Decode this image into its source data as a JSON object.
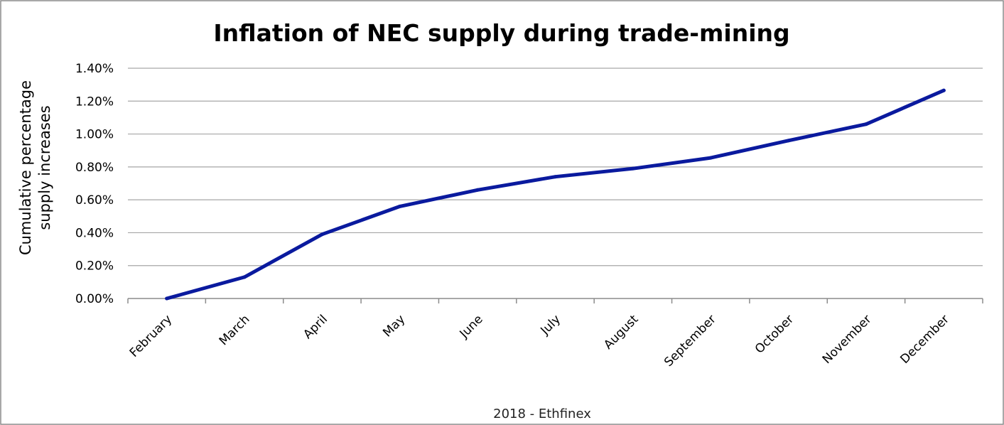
{
  "chart_data": {
    "type": "line",
    "title": "Inflation of NEC supply during trade-mining",
    "ylabel_lines": [
      "Cumulative percentage",
      "supply increases"
    ],
    "xlabel": "2018 - Ethfinex",
    "categories": [
      "February",
      "March",
      "April",
      "May",
      "June",
      "July",
      "August",
      "September",
      "October",
      "November",
      "December"
    ],
    "series": [
      {
        "values": [
          0.0,
          0.13,
          0.39,
          0.56,
          0.66,
          0.74,
          0.79,
          0.855,
          0.96,
          1.06,
          1.265
        ],
        "color": "#0a1a9e"
      }
    ],
    "ylim": [
      0,
      1.4
    ],
    "yticks": [
      "0.00%",
      "0.20%",
      "0.40%",
      "0.60%",
      "0.80%",
      "1.00%",
      "1.20%",
      "1.40%"
    ],
    "grid": true,
    "legend": "none",
    "colors": {
      "grid": "#a6a6a6",
      "border": "#8c8c8c"
    }
  }
}
